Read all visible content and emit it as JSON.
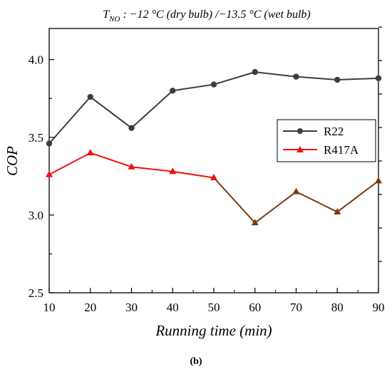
{
  "chart_data": {
    "type": "line",
    "title_parts": {
      "symbol": "T",
      "subscript": "NO",
      "rest": " : −12 °C (dry bulb) /−13.5 °C (wet bulb)"
    },
    "xlabel": "Running time (min)",
    "ylabel": "COP",
    "caption": "(b)",
    "x": [
      10,
      20,
      30,
      40,
      50,
      60,
      70,
      80,
      90
    ],
    "xlim": [
      10,
      90
    ],
    "ylim": [
      2.5,
      4.2
    ],
    "xticks": [
      "10",
      "20",
      "30",
      "40",
      "50",
      "60",
      "70",
      "80",
      "90"
    ],
    "yticks": [
      "2.5",
      "3.0",
      "3.5",
      "4.0"
    ],
    "ytick_values": [
      2.5,
      3.0,
      3.5,
      4.0
    ],
    "legend_position": "right",
    "grid": false,
    "series": [
      {
        "name": "R22",
        "values": [
          3.46,
          3.76,
          3.56,
          3.8,
          3.84,
          3.92,
          3.89,
          3.87,
          3.88
        ],
        "color": "#3d3d3d",
        "marker": "circle"
      },
      {
        "name": "R417A",
        "values": [
          3.26,
          3.4,
          3.31,
          3.28,
          3.24,
          2.95,
          3.15,
          3.02,
          3.22
        ],
        "color": "#ee1111",
        "secondary_color": "#7a3a10",
        "marker": "triangle"
      }
    ]
  }
}
